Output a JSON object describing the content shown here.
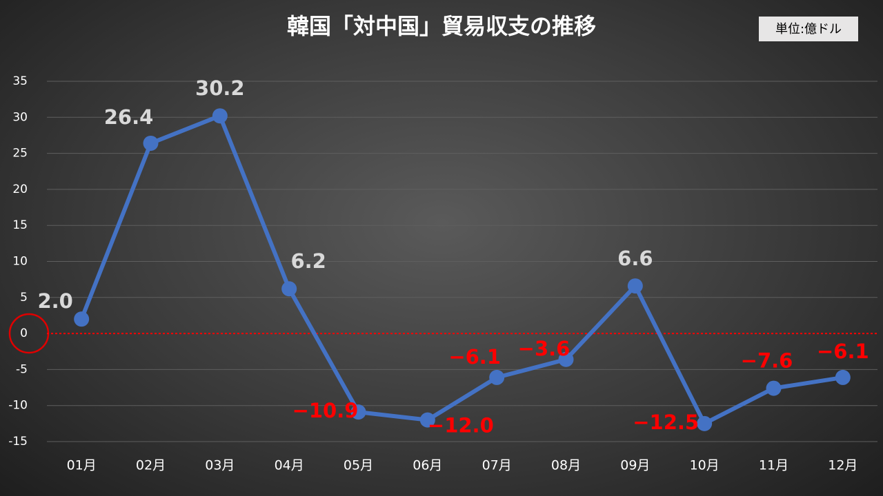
{
  "chart_data": {
    "type": "line",
    "title": "韓国「対中国」貿易収支の推移",
    "unit_label": "単位:億ドル",
    "categories": [
      "01月",
      "02月",
      "03月",
      "04月",
      "05月",
      "06月",
      "07月",
      "08月",
      "09月",
      "10月",
      "11月",
      "12月"
    ],
    "series": [
      {
        "color": "#4472c4",
        "values": [
          2.0,
          26.4,
          30.2,
          6.2,
          -10.9,
          -12.0,
          -6.1,
          -3.6,
          6.6,
          -12.5,
          -7.6,
          -6.1
        ],
        "value_labels": [
          "2.0",
          "26.4",
          "30.2",
          "6.2",
          "−10.9",
          "−12.0",
          "−6.1",
          "−3.6",
          "6.6",
          "−12.5",
          "−7.6",
          "−6.1"
        ]
      }
    ],
    "ylim": [
      -15,
      35
    ],
    "yticks": [
      -15,
      -10,
      -5,
      0,
      5,
      10,
      15,
      20,
      25,
      30,
      35
    ],
    "grid": true,
    "positive_label_color": "#d9d9d9",
    "negative_label_color": "#ff0000",
    "zero_line_color": "#ff0000"
  }
}
